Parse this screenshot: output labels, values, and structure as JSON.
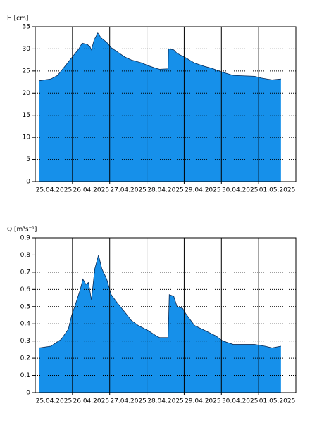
{
  "chart_data": [
    {
      "type": "area",
      "y_label": "H [cm]",
      "color": "#1690ea",
      "grid": true,
      "xlim": [
        0,
        7
      ],
      "xticks": [
        {
          "value": 0,
          "label": "25.04.2025"
        },
        {
          "value": 1,
          "label": "26.04.2025"
        },
        {
          "value": 2,
          "label": "27.04.2025"
        },
        {
          "value": 3,
          "label": "28.04.2025"
        },
        {
          "value": 4,
          "label": "29.04.2025"
        },
        {
          "value": 5,
          "label": "30.04.2025"
        },
        {
          "value": 6,
          "label": "01.05.2025"
        }
      ],
      "ylim": [
        0,
        35
      ],
      "yticks": [
        0,
        5,
        10,
        15,
        20,
        25,
        30,
        35
      ],
      "x": [
        0.11,
        0.42,
        0.6,
        0.79,
        0.98,
        1.17,
        1.26,
        1.4,
        1.47,
        1.51,
        1.58,
        1.68,
        1.77,
        1.92,
        2.04,
        2.21,
        2.4,
        2.58,
        2.87,
        3.04,
        3.25,
        3.34,
        3.57,
        3.58,
        3.72,
        3.81,
        4.04,
        4.28,
        4.57,
        4.75,
        5.04,
        5.32,
        5.6,
        5.89,
        6.08,
        6.36,
        6.6
      ],
      "values": [
        22.8,
        23.2,
        24,
        26,
        28,
        30,
        31.3,
        31,
        30.5,
        29.8,
        32,
        33.6,
        32.5,
        31.5,
        30.3,
        29.3,
        28.2,
        27.5,
        26.8,
        26.2,
        25.6,
        25.4,
        25.5,
        30,
        29.8,
        29,
        28,
        26.8,
        26,
        25.6,
        24.7,
        24,
        23.9,
        23.8,
        23.4,
        23,
        23.2
      ]
    },
    {
      "type": "area",
      "y_label": "Q [m³s⁻¹]",
      "color": "#1690ea",
      "grid": true,
      "xlim": [
        0,
        7
      ],
      "xticks": [
        {
          "value": 0,
          "label": "25.04.2025"
        },
        {
          "value": 1,
          "label": "26.04.2025"
        },
        {
          "value": 2,
          "label": "27.04.2025"
        },
        {
          "value": 3,
          "label": "28.04.2025"
        },
        {
          "value": 4,
          "label": "29.04.2025"
        },
        {
          "value": 5,
          "label": "30.04.2025"
        },
        {
          "value": 6,
          "label": "01.05.2025"
        }
      ],
      "ylim": [
        0,
        0.9
      ],
      "yticks": [
        0,
        {
          "value": 0.1,
          "label": "0,1"
        },
        {
          "value": 0.2,
          "label": "0,2"
        },
        {
          "value": 0.3,
          "label": "0,3"
        },
        {
          "value": 0.4,
          "label": "0,4"
        },
        {
          "value": 0.5,
          "label": "0,5"
        },
        {
          "value": 0.6,
          "label": "0,6"
        },
        {
          "value": 0.7,
          "label": "0,7"
        },
        {
          "value": 0.8,
          "label": "0,8"
        },
        {
          "value": 0.9,
          "label": "0,9"
        }
      ],
      "x": [
        0.11,
        0.42,
        0.7,
        0.89,
        0.98,
        1.09,
        1.21,
        1.28,
        1.36,
        1.43,
        1.51,
        1.6,
        1.7,
        1.79,
        1.92,
        2.04,
        2.21,
        2.4,
        2.58,
        2.77,
        3.04,
        3.25,
        3.34,
        3.57,
        3.6,
        3.72,
        3.81,
        3.96,
        4.04,
        4.28,
        4.57,
        4.85,
        5.04,
        5.32,
        5.6,
        5.89,
        6.17,
        6.36,
        6.6
      ],
      "values": [
        0.26,
        0.27,
        0.31,
        0.37,
        0.45,
        0.52,
        0.6,
        0.66,
        0.63,
        0.64,
        0.54,
        0.72,
        0.8,
        0.72,
        0.66,
        0.57,
        0.52,
        0.47,
        0.42,
        0.39,
        0.36,
        0.33,
        0.32,
        0.32,
        0.57,
        0.56,
        0.5,
        0.49,
        0.46,
        0.39,
        0.36,
        0.33,
        0.3,
        0.28,
        0.28,
        0.28,
        0.27,
        0.26,
        0.27
      ]
    }
  ]
}
